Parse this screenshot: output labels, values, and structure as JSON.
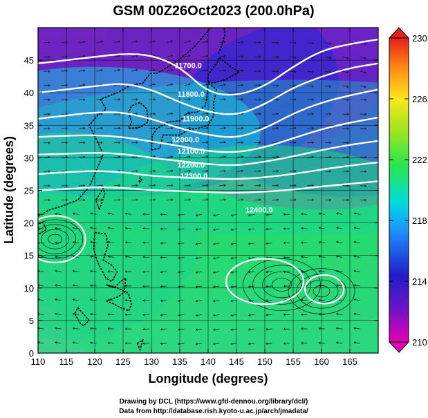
{
  "chart_data": {
    "type": "heatmap",
    "title": "GSM 00Z26Oct2023 (200.0hPa)",
    "xlabel": "Longitude (degrees)",
    "ylabel": "Latitude  (degrees)",
    "xlim": [
      110,
      170
    ],
    "ylim": [
      0,
      50
    ],
    "x_ticks": [
      "110",
      "115",
      "120",
      "125",
      "130",
      "135",
      "140",
      "145",
      "150",
      "155",
      "160",
      "165"
    ],
    "y_ticks": [
      "0",
      "5",
      "10",
      "15",
      "20",
      "25",
      "30",
      "35",
      "40",
      "45"
    ],
    "grid": true,
    "colorbar": {
      "range": [
        210,
        230
      ],
      "tick_labels": [
        "210",
        "214",
        "218",
        "222",
        "226",
        "230"
      ],
      "colors": [
        "#e600b4",
        "#1e1ec8",
        "#1ea0ff",
        "#00e6c8",
        "#3ce61e",
        "#b4e61e",
        "#ffd21e",
        "#ff8c14",
        "#e61e1e"
      ]
    },
    "contours": [
      {
        "label": "11700.0",
        "points": [
          [
            110,
            44.5
          ],
          [
            115,
            45
          ],
          [
            120,
            45.5
          ],
          [
            125,
            46
          ],
          [
            130,
            45.8
          ],
          [
            135,
            44
          ],
          [
            140,
            40
          ],
          [
            145,
            39.5
          ],
          [
            150,
            41
          ],
          [
            155,
            44
          ],
          [
            160,
            46.5
          ],
          [
            165,
            47.5
          ],
          [
            170,
            48.2
          ]
        ]
      },
      {
        "label": "11800.0",
        "points": [
          [
            110,
            40
          ],
          [
            115,
            40.5
          ],
          [
            120,
            41
          ],
          [
            125,
            41.5
          ],
          [
            130,
            40.5
          ],
          [
            135,
            38.5
          ],
          [
            140,
            37
          ],
          [
            145,
            36.5
          ],
          [
            150,
            38.2
          ],
          [
            155,
            40.8
          ],
          [
            160,
            42.5
          ],
          [
            165,
            43.8
          ],
          [
            170,
            44.5
          ]
        ]
      },
      {
        "label": "11900.0",
        "points": [
          [
            110,
            36
          ],
          [
            115,
            36.5
          ],
          [
            120,
            37
          ],
          [
            125,
            37
          ],
          [
            130,
            36
          ],
          [
            135,
            34.5
          ],
          [
            140,
            33.5
          ],
          [
            145,
            33
          ],
          [
            150,
            34.5
          ],
          [
            155,
            36.8
          ],
          [
            160,
            38.5
          ],
          [
            165,
            39.6
          ],
          [
            170,
            40.5
          ]
        ]
      },
      {
        "label": "12000.0",
        "points": [
          [
            110,
            33.2
          ],
          [
            115,
            33.4
          ],
          [
            120,
            33.5
          ],
          [
            125,
            33.2
          ],
          [
            130,
            32.5
          ],
          [
            135,
            31.8
          ],
          [
            140,
            31
          ],
          [
            145,
            30.8
          ],
          [
            150,
            31.6
          ],
          [
            155,
            33
          ],
          [
            160,
            34.4
          ],
          [
            165,
            35.4
          ],
          [
            170,
            36.2
          ]
        ]
      },
      {
        "label": "12100.0",
        "points": [
          [
            110,
            30.5
          ],
          [
            115,
            30.6
          ],
          [
            120,
            30.8
          ],
          [
            125,
            30.6
          ],
          [
            130,
            30
          ],
          [
            135,
            29.5
          ],
          [
            140,
            29
          ],
          [
            145,
            28.8
          ],
          [
            150,
            29.4
          ],
          [
            155,
            30.2
          ],
          [
            160,
            31.2
          ],
          [
            165,
            32
          ],
          [
            170,
            32.6
          ]
        ]
      },
      {
        "label": "12200.0",
        "points": [
          [
            110,
            27.5
          ],
          [
            115,
            27.8
          ],
          [
            120,
            28
          ],
          [
            125,
            27.8
          ],
          [
            130,
            27.2
          ],
          [
            135,
            27
          ],
          [
            140,
            26.8
          ],
          [
            145,
            26.7
          ],
          [
            150,
            27
          ],
          [
            155,
            27.5
          ],
          [
            160,
            28.2
          ],
          [
            165,
            28.8
          ],
          [
            170,
            29.3
          ]
        ]
      },
      {
        "label": "12300.0",
        "points": [
          [
            110,
            25
          ],
          [
            115,
            25.2
          ],
          [
            120,
            25.5
          ],
          [
            125,
            25.4
          ],
          [
            130,
            25
          ],
          [
            135,
            24.9
          ],
          [
            140,
            24.7
          ],
          [
            145,
            24.6
          ],
          [
            150,
            24.8
          ],
          [
            155,
            25.1
          ],
          [
            160,
            25.6
          ],
          [
            165,
            26
          ],
          [
            170,
            26.4
          ]
        ]
      }
    ],
    "contour_labels": [
      {
        "text": "11700.0",
        "x": 136.5,
        "y": 43.8
      },
      {
        "text": "11800.0",
        "x": 137.0,
        "y": 39.4
      },
      {
        "text": "11900.0",
        "x": 137.8,
        "y": 35.6
      },
      {
        "text": "12000.0",
        "x": 136.0,
        "y": 32.4
      },
      {
        "text": "12100.0",
        "x": 137.0,
        "y": 30.6
      },
      {
        "text": "12200.0",
        "x": 137.0,
        "y": 28.5
      },
      {
        "text": "12300.0",
        "x": 137.5,
        "y": 26.8
      },
      {
        "text": "12400.0",
        "x": 149.0,
        "y": 21.6
      }
    ]
  },
  "credits": {
    "line1": "Drawing by DCL (https://www.gfd-dennou.org/library/dcl/)",
    "line2": "Data from http://database.rish.kyoto-u.ac.jp/arch/jmadata/"
  }
}
